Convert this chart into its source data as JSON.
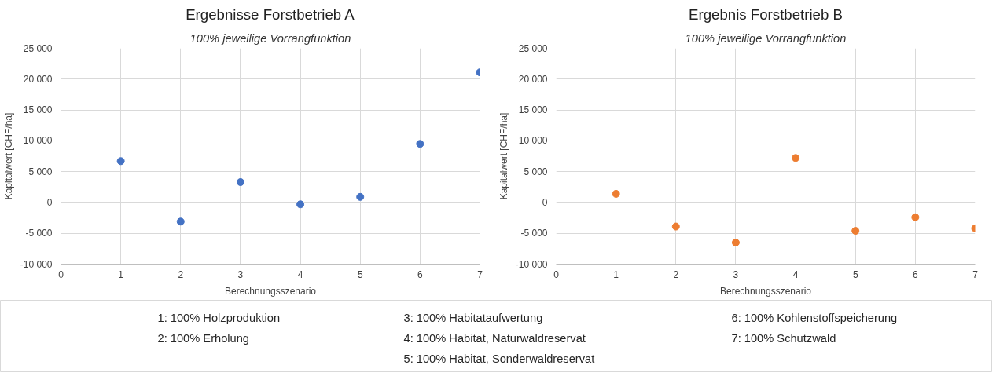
{
  "chart_data": [
    {
      "type": "scatter",
      "title": "Ergebnisse Forstbetrieb A",
      "subtitle": "100% jeweilige Vorrangfunktion",
      "xlabel": "Berechnungsszenario",
      "ylabel": "Kapitalwert [CHF/ha]",
      "x": [
        1,
        2,
        3,
        4,
        5,
        6,
        7
      ],
      "series": [
        {
          "color": "#4472c4",
          "values": [
            6700,
            -3100,
            3300,
            -300,
            900,
            9500,
            21100
          ]
        }
      ],
      "xlim": [
        0,
        7
      ],
      "xticks": [
        0,
        1,
        2,
        3,
        4,
        5,
        6,
        7
      ],
      "ylim": [
        -10000,
        25000
      ],
      "yticks": [
        {
          "value": -10000,
          "label": "-10 000"
        },
        {
          "value": -5000,
          "label": "-5 000"
        },
        0,
        {
          "value": 5000,
          "label": "5 000"
        },
        {
          "value": 10000,
          "label": "10 000"
        },
        {
          "value": 15000,
          "label": "15 000"
        },
        {
          "value": 20000,
          "label": "20 000"
        },
        {
          "value": 25000,
          "label": "25 000"
        }
      ],
      "grid": true,
      "marker": "circle"
    },
    {
      "type": "scatter",
      "title": "Ergebnis Forstbetrieb B",
      "subtitle": "100% jeweilige Vorrangfunktion",
      "xlabel": "Berechnungsszenario",
      "ylabel": "Kapitalwert [CHF/ha]",
      "x": [
        1,
        2,
        3,
        4,
        5,
        6,
        7
      ],
      "series": [
        {
          "color": "#ed7d31",
          "values": [
            1400,
            -3900,
            -6500,
            7200,
            -4600,
            -2400,
            -4200
          ]
        }
      ],
      "xlim": [
        0,
        7
      ],
      "xticks": [
        0,
        1,
        2,
        3,
        4,
        5,
        6,
        7
      ],
      "ylim": [
        -10000,
        25000
      ],
      "yticks": [
        {
          "value": -10000,
          "label": "-10 000"
        },
        {
          "value": -5000,
          "label": "-5 000"
        },
        0,
        {
          "value": 5000,
          "label": "5 000"
        },
        {
          "value": 10000,
          "label": "10 000"
        },
        {
          "value": 15000,
          "label": "15 000"
        },
        {
          "value": 20000,
          "label": "20 000"
        },
        {
          "value": 25000,
          "label": "25 000"
        }
      ],
      "grid": true,
      "marker": "circle"
    },
    {
      "type": "other",
      "annotations": [
        "1: 100% Holzproduktion",
        "2: 100% Erholung",
        "3: 100% Habitataufwertung",
        "4: 100% Habitat, Naturwaldreservat",
        "5: 100% Habitat, Sonderwaldreservat",
        "6: 100% Kohlenstoffspeicherung",
        "7: 100% Schutzwald"
      ]
    }
  ]
}
